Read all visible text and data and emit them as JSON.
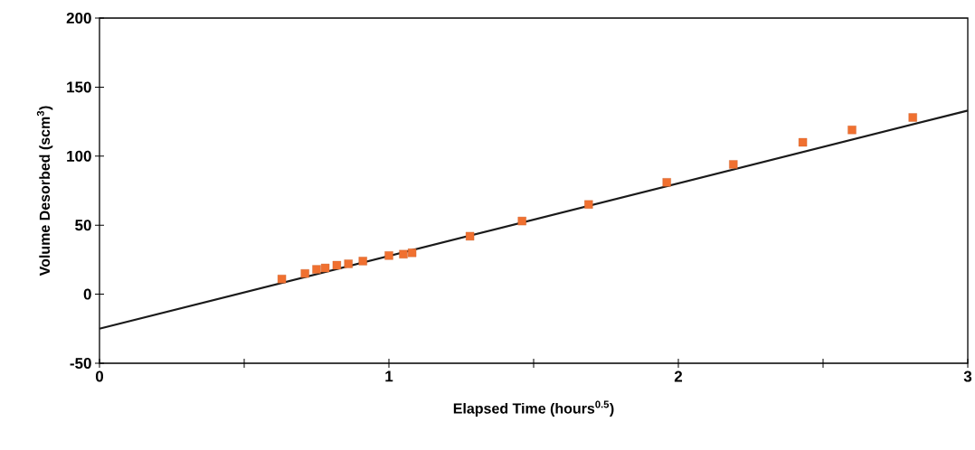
{
  "chart_data": {
    "type": "scatter",
    "xlabel": "Elapsed Time (hours$^{0.5}$)",
    "ylabel": "Volume Desorbed (scm$^{3}$)",
    "xlim": [
      0,
      3
    ],
    "ylim": [
      -50,
      200
    ],
    "xticks": [
      0,
      {
        "value": 0.5,
        "label": null
      },
      1,
      {
        "value": 1.5,
        "label": null
      },
      2,
      {
        "value": 2.5,
        "label": null
      },
      3
    ],
    "yticks": [
      -50,
      0,
      50,
      100,
      150,
      200
    ],
    "grid": false,
    "series": [
      {
        "marker": "square",
        "color": "#f07030",
        "x": [
          0.63,
          0.71,
          0.75,
          0.78,
          0.82,
          0.86,
          0.91,
          1.0,
          1.05,
          1.08,
          1.28,
          1.46,
          1.69,
          1.96,
          2.19,
          2.43,
          2.6,
          2.81
        ],
        "values": [
          11,
          15,
          18,
          19,
          21,
          22,
          24,
          28,
          29,
          30,
          42,
          53,
          65,
          81,
          94,
          110,
          119,
          128
        ]
      },
      {
        "type": "line",
        "marker": "none",
        "line_style": "solid",
        "color": "#1a1a1a",
        "x": [
          0,
          3
        ],
        "values": [
          -25,
          133
        ]
      }
    ]
  }
}
